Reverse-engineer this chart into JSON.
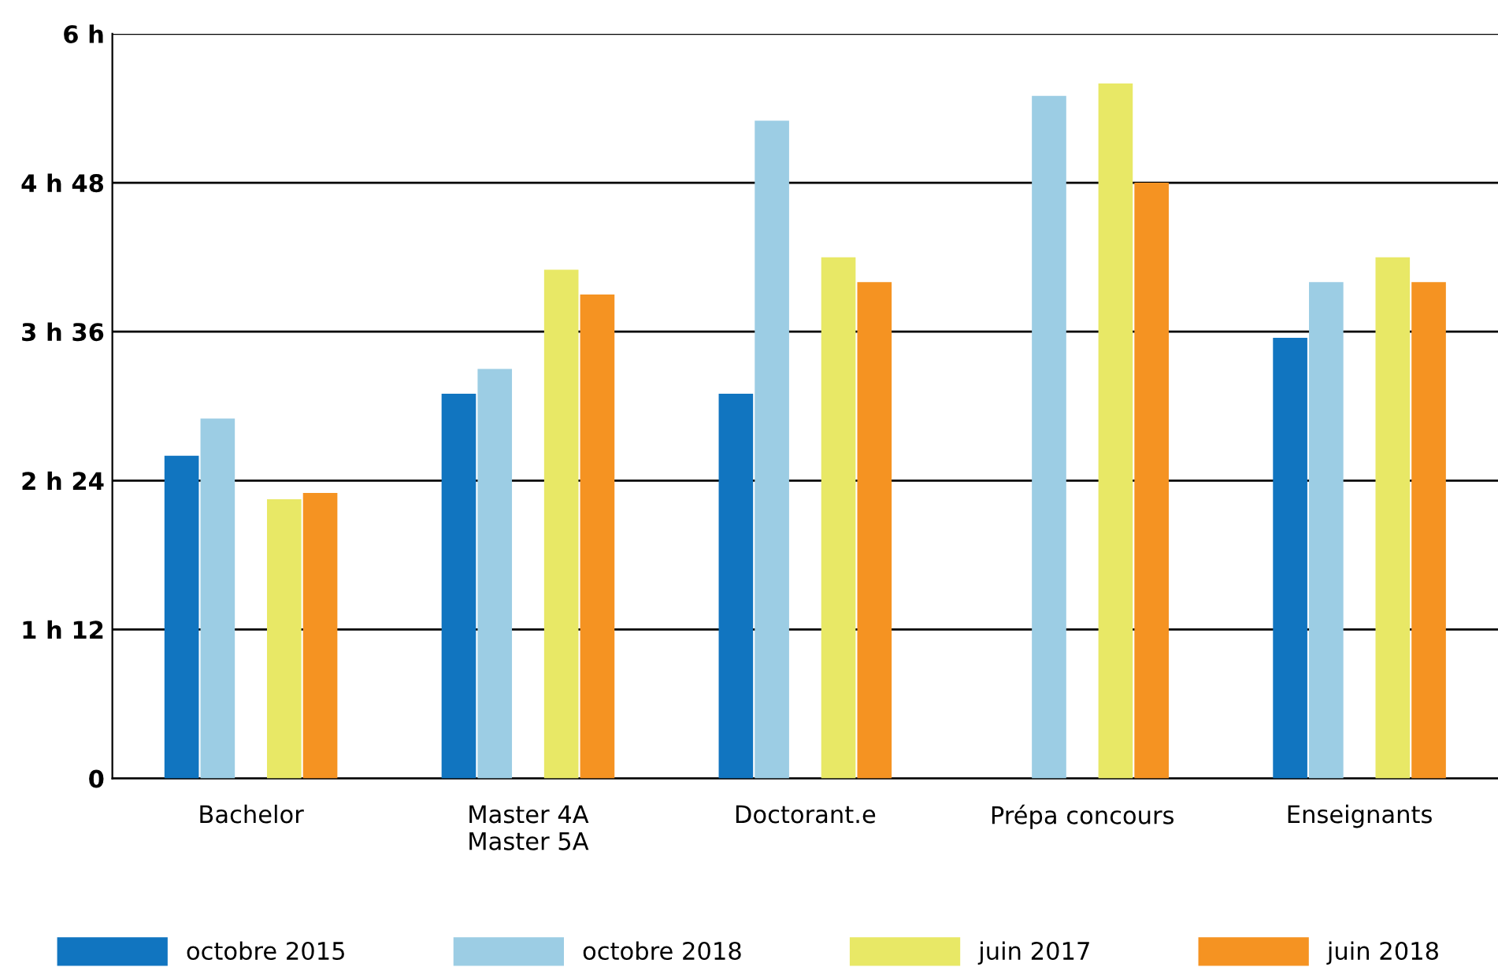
{
  "chart_data": {
    "type": "bar",
    "categories": [
      "Bachelor",
      "Master 4A\nMaster 5A",
      "Doctorant.e",
      "Prépa concours",
      "Enseignants"
    ],
    "series": [
      {
        "name": "octobre 2015",
        "color": "#1175c0",
        "values": [
          2.6,
          3.1,
          3.1,
          null,
          3.55
        ]
      },
      {
        "name": "octobre 2018",
        "color": "#9ccde4",
        "values": [
          2.9,
          3.3,
          5.3,
          5.5,
          4.0
        ]
      },
      {
        "name": "juin 2017",
        "color": "#e8e866",
        "values": [
          2.25,
          4.1,
          4.2,
          5.6,
          4.2
        ]
      },
      {
        "name": "juin 2018",
        "color": "#f59322",
        "values": [
          2.3,
          3.9,
          4.0,
          4.8,
          4.0
        ]
      }
    ],
    "ylim": [
      0,
      6
    ],
    "yticks": [
      0,
      {
        "value": 1.2,
        "label": "1 h 12"
      },
      {
        "value": 2.4,
        "label": "2 h 24"
      },
      {
        "value": 3.6,
        "label": "3 h 36"
      },
      {
        "value": 4.8,
        "label": "4 h 48"
      },
      {
        "value": 6,
        "label": "6 h"
      }
    ],
    "grid": "y",
    "legend": "bottom"
  }
}
